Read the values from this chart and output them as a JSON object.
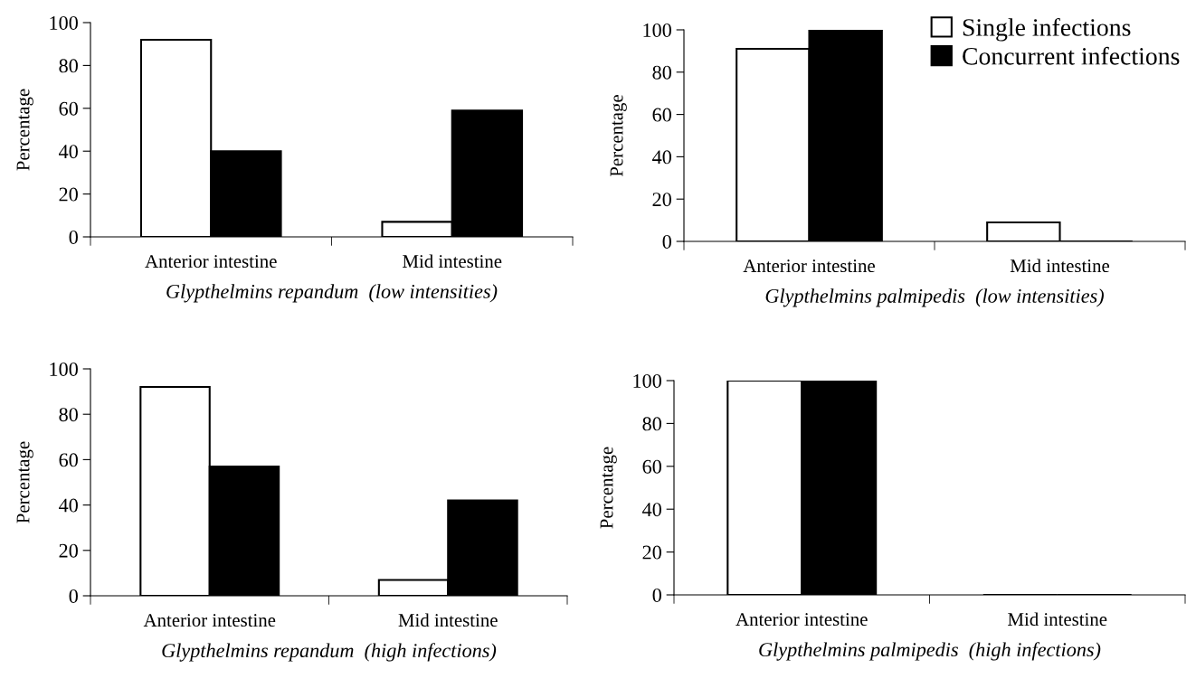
{
  "chart_data": [
    {
      "type": "bar",
      "categories": [
        "Anterior intestine",
        "Mid intestine"
      ],
      "xlabel": "Glypthelmins repandum  (low intensities)",
      "ylabel": "Percentage",
      "ylim": [
        0,
        100
      ],
      "yticks": [
        0,
        20,
        40,
        60,
        80,
        100
      ],
      "grid": false,
      "legend": false,
      "series": [
        {
          "color": "#ffffff",
          "values": [
            92,
            7
          ]
        },
        {
          "color": "#000000",
          "values": [
            40,
            59
          ]
        }
      ]
    },
    {
      "type": "bar",
      "categories": [
        "Anterior intestine",
        "Mid intestine"
      ],
      "xlabel": "Glypthelmins palmipedis  (low intensities)",
      "ylabel": "Percentage",
      "ylim": [
        0,
        100
      ],
      "yticks": [
        0,
        20,
        40,
        60,
        80,
        100
      ],
      "grid": false,
      "legend": "top right",
      "series": [
        {
          "name": "Single infections",
          "color": "#ffffff",
          "values": [
            91,
            9
          ]
        },
        {
          "name": "Concurrent infections",
          "color": "#000000",
          "values": [
            100,
            0
          ]
        }
      ]
    },
    {
      "type": "bar",
      "categories": [
        "Anterior intestine",
        "Mid intestine"
      ],
      "xlabel": "Glypthelmins repandum  (high infections)",
      "ylabel": "Percentage",
      "ylim": [
        0,
        100
      ],
      "yticks": [
        0,
        20,
        40,
        60,
        80,
        100
      ],
      "grid": false,
      "legend": false,
      "series": [
        {
          "color": "#ffffff",
          "values": [
            92,
            7
          ]
        },
        {
          "color": "#000000",
          "values": [
            57,
            42
          ]
        }
      ]
    },
    {
      "type": "bar",
      "categories": [
        "Anterior intestine",
        "Mid intestine"
      ],
      "xlabel": "Glypthelmins palmipedis  (high infections)",
      "ylabel": "Percentage",
      "ylim": [
        0,
        100
      ],
      "yticks": [
        0,
        20,
        40,
        60,
        80,
        100
      ],
      "grid": false,
      "legend": false,
      "series": [
        {
          "color": "#ffffff",
          "values": [
            100,
            0
          ]
        },
        {
          "color": "#000000",
          "values": [
            100,
            0
          ]
        }
      ]
    }
  ]
}
